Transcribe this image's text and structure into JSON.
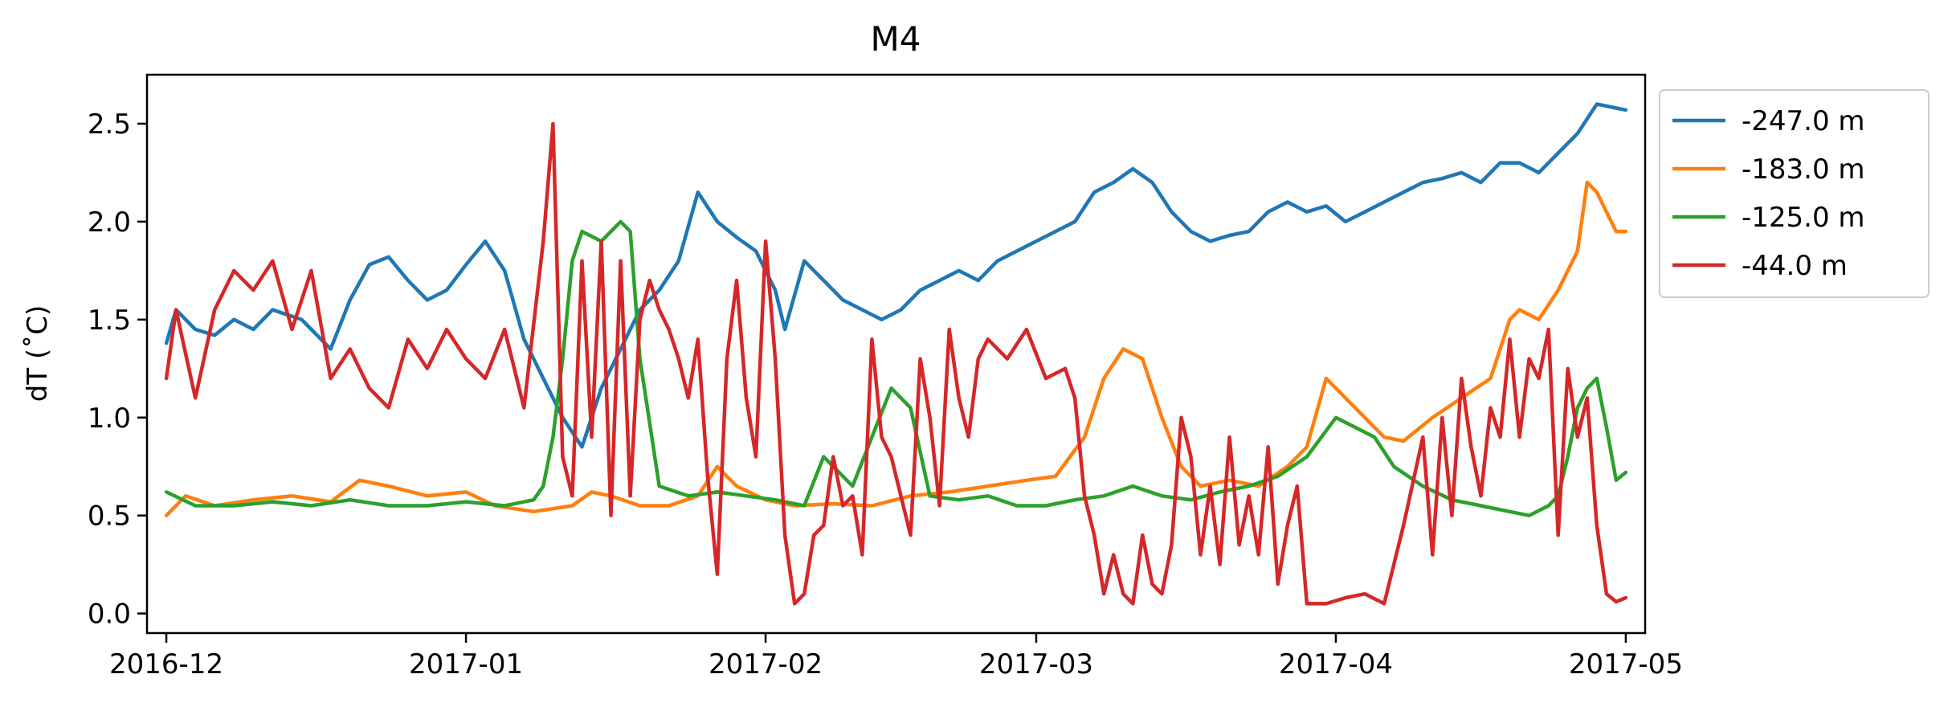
{
  "chart_data": {
    "type": "line",
    "title": "M4",
    "xlabel": "",
    "ylabel": "dT (˚C)",
    "xlim": [
      "2016-11-29",
      "2017-05-03"
    ],
    "ylim": [
      -0.1,
      2.75
    ],
    "x_ticks": [
      "2016-12-01",
      "2017-01-01",
      "2017-02-01",
      "2017-03-01",
      "2017-04-01",
      "2017-05-01"
    ],
    "x_tick_labels": [
      "2016-12",
      "2017-01",
      "2017-02",
      "2017-03",
      "2017-04",
      "2017-05"
    ],
    "y_ticks": [
      0.0,
      0.5,
      1.0,
      1.5,
      2.0,
      2.5
    ],
    "y_tick_labels": [
      "0.0",
      "0.5",
      "1.0",
      "1.5",
      "2.0",
      "2.5"
    ],
    "grid": false,
    "legend_position": "outside-upper-right",
    "series": [
      {
        "name": "-247.0 m",
        "color": "#1f77b4",
        "x": [
          "2016-12-01",
          "2016-12-02",
          "2016-12-04",
          "2016-12-06",
          "2016-12-08",
          "2016-12-10",
          "2016-12-12",
          "2016-12-15",
          "2016-12-18",
          "2016-12-20",
          "2016-12-22",
          "2016-12-24",
          "2016-12-26",
          "2016-12-28",
          "2016-12-30",
          "2017-01-01",
          "2017-01-03",
          "2017-01-05",
          "2017-01-07",
          "2017-01-09",
          "2017-01-11",
          "2017-01-13",
          "2017-01-15",
          "2017-01-17",
          "2017-01-19",
          "2017-01-21",
          "2017-01-23",
          "2017-01-25",
          "2017-01-27",
          "2017-01-29",
          "2017-01-31",
          "2017-02-02",
          "2017-02-03",
          "2017-02-05",
          "2017-02-07",
          "2017-02-09",
          "2017-02-11",
          "2017-02-13",
          "2017-02-15",
          "2017-02-17",
          "2017-02-19",
          "2017-02-21",
          "2017-02-23",
          "2017-02-25",
          "2017-02-27",
          "2017-03-01",
          "2017-03-03",
          "2017-03-05",
          "2017-03-07",
          "2017-03-09",
          "2017-03-11",
          "2017-03-13",
          "2017-03-15",
          "2017-03-17",
          "2017-03-19",
          "2017-03-21",
          "2017-03-23",
          "2017-03-25",
          "2017-03-27",
          "2017-03-29",
          "2017-03-31",
          "2017-04-02",
          "2017-04-04",
          "2017-04-06",
          "2017-04-08",
          "2017-04-10",
          "2017-04-12",
          "2017-04-14",
          "2017-04-16",
          "2017-04-18",
          "2017-04-20",
          "2017-04-22",
          "2017-04-24",
          "2017-04-26",
          "2017-04-28",
          "2017-04-30",
          "2017-05-01"
        ],
        "y": [
          1.38,
          1.55,
          1.45,
          1.42,
          1.5,
          1.45,
          1.55,
          1.5,
          1.35,
          1.6,
          1.78,
          1.82,
          1.7,
          1.6,
          1.65,
          1.78,
          1.9,
          1.75,
          1.4,
          1.2,
          1.0,
          0.85,
          1.15,
          1.35,
          1.55,
          1.65,
          1.8,
          2.15,
          2.0,
          1.92,
          1.85,
          1.65,
          1.45,
          1.8,
          1.7,
          1.6,
          1.55,
          1.5,
          1.55,
          1.65,
          1.7,
          1.75,
          1.7,
          1.8,
          1.85,
          1.9,
          1.95,
          2.0,
          2.15,
          2.2,
          2.27,
          2.2,
          2.05,
          1.95,
          1.9,
          1.93,
          1.95,
          2.05,
          2.1,
          2.05,
          2.08,
          2.0,
          2.05,
          2.1,
          2.15,
          2.2,
          2.22,
          2.25,
          2.2,
          2.3,
          2.3,
          2.25,
          2.35,
          2.45,
          2.6,
          2.58,
          2.57
        ]
      },
      {
        "name": "-183.0 m",
        "color": "#ff7f0e",
        "x": [
          "2016-12-01",
          "2016-12-03",
          "2016-12-06",
          "2016-12-10",
          "2016-12-14",
          "2016-12-18",
          "2016-12-21",
          "2016-12-24",
          "2016-12-28",
          "2017-01-01",
          "2017-01-04",
          "2017-01-08",
          "2017-01-12",
          "2017-01-14",
          "2017-01-16",
          "2017-01-19",
          "2017-01-22",
          "2017-01-25",
          "2017-01-27",
          "2017-01-29",
          "2017-02-01",
          "2017-02-04",
          "2017-02-08",
          "2017-02-12",
          "2017-02-16",
          "2017-02-20",
          "2017-02-24",
          "2017-02-28",
          "2017-03-03",
          "2017-03-06",
          "2017-03-08",
          "2017-03-10",
          "2017-03-12",
          "2017-03-14",
          "2017-03-16",
          "2017-03-18",
          "2017-03-21",
          "2017-03-24",
          "2017-03-27",
          "2017-03-29",
          "2017-03-31",
          "2017-04-02",
          "2017-04-04",
          "2017-04-06",
          "2017-04-08",
          "2017-04-11",
          "2017-04-14",
          "2017-04-17",
          "2017-04-19",
          "2017-04-20",
          "2017-04-22",
          "2017-04-24",
          "2017-04-26",
          "2017-04-27",
          "2017-04-28",
          "2017-04-29",
          "2017-04-30",
          "2017-05-01"
        ],
        "y": [
          0.5,
          0.6,
          0.55,
          0.58,
          0.6,
          0.57,
          0.68,
          0.65,
          0.6,
          0.62,
          0.55,
          0.52,
          0.55,
          0.62,
          0.6,
          0.55,
          0.55,
          0.6,
          0.75,
          0.65,
          0.58,
          0.55,
          0.56,
          0.55,
          0.6,
          0.62,
          0.65,
          0.68,
          0.7,
          0.9,
          1.2,
          1.35,
          1.3,
          1.0,
          0.75,
          0.65,
          0.68,
          0.65,
          0.75,
          0.85,
          1.2,
          1.1,
          1.0,
          0.9,
          0.88,
          1.0,
          1.1,
          1.2,
          1.5,
          1.55,
          1.5,
          1.65,
          1.85,
          2.2,
          2.15,
          2.05,
          1.95,
          1.95
        ]
      },
      {
        "name": "-125.0 m",
        "color": "#2ca02c",
        "x": [
          "2016-12-01",
          "2016-12-04",
          "2016-12-08",
          "2016-12-12",
          "2016-12-16",
          "2016-12-20",
          "2016-12-24",
          "2016-12-28",
          "2017-01-01",
          "2017-01-05",
          "2017-01-08",
          "2017-01-09",
          "2017-01-10",
          "2017-01-11",
          "2017-01-12",
          "2017-01-13",
          "2017-01-15",
          "2017-01-17",
          "2017-01-18",
          "2017-01-19",
          "2017-01-21",
          "2017-01-24",
          "2017-01-27",
          "2017-01-30",
          "2017-02-02",
          "2017-02-05",
          "2017-02-07",
          "2017-02-10",
          "2017-02-12",
          "2017-02-14",
          "2017-02-16",
          "2017-02-18",
          "2017-02-21",
          "2017-02-24",
          "2017-02-27",
          "2017-03-02",
          "2017-03-05",
          "2017-03-08",
          "2017-03-11",
          "2017-03-14",
          "2017-03-17",
          "2017-03-20",
          "2017-03-23",
          "2017-03-26",
          "2017-03-29",
          "2017-04-01",
          "2017-04-03",
          "2017-04-05",
          "2017-04-07",
          "2017-04-10",
          "2017-04-13",
          "2017-04-16",
          "2017-04-19",
          "2017-04-21",
          "2017-04-23",
          "2017-04-24",
          "2017-04-25",
          "2017-04-26",
          "2017-04-27",
          "2017-04-28",
          "2017-04-29",
          "2017-04-30",
          "2017-05-01"
        ],
        "y": [
          0.62,
          0.55,
          0.55,
          0.57,
          0.55,
          0.58,
          0.55,
          0.55,
          0.57,
          0.55,
          0.58,
          0.65,
          0.9,
          1.3,
          1.8,
          1.95,
          1.9,
          2.0,
          1.95,
          1.3,
          0.65,
          0.6,
          0.62,
          0.6,
          0.58,
          0.55,
          0.8,
          0.65,
          0.9,
          1.15,
          1.05,
          0.6,
          0.58,
          0.6,
          0.55,
          0.55,
          0.58,
          0.6,
          0.65,
          0.6,
          0.58,
          0.62,
          0.65,
          0.7,
          0.8,
          1.0,
          0.95,
          0.9,
          0.75,
          0.65,
          0.58,
          0.55,
          0.52,
          0.5,
          0.55,
          0.6,
          0.8,
          1.05,
          1.15,
          1.2,
          0.95,
          0.68,
          0.72
        ]
      },
      {
        "name": "-44.0 m",
        "color": "#d62728",
        "x": [
          "2016-12-01",
          "2016-12-02",
          "2016-12-04",
          "2016-12-06",
          "2016-12-08",
          "2016-12-10",
          "2016-12-12",
          "2016-12-14",
          "2016-12-16",
          "2016-12-18",
          "2016-12-20",
          "2016-12-22",
          "2016-12-24",
          "2016-12-26",
          "2016-12-28",
          "2016-12-30",
          "2017-01-01",
          "2017-01-03",
          "2017-01-05",
          "2017-01-07",
          "2017-01-09",
          "2017-01-10",
          "2017-01-11",
          "2017-01-12",
          "2017-01-13",
          "2017-01-14",
          "2017-01-15",
          "2017-01-16",
          "2017-01-17",
          "2017-01-18",
          "2017-01-19",
          "2017-01-20",
          "2017-01-21",
          "2017-01-22",
          "2017-01-23",
          "2017-01-24",
          "2017-01-25",
          "2017-01-26",
          "2017-01-27",
          "2017-01-28",
          "2017-01-29",
          "2017-01-30",
          "2017-01-31",
          "2017-02-01",
          "2017-02-02",
          "2017-02-03",
          "2017-02-04",
          "2017-02-05",
          "2017-02-06",
          "2017-02-07",
          "2017-02-08",
          "2017-02-09",
          "2017-02-10",
          "2017-02-11",
          "2017-02-12",
          "2017-02-13",
          "2017-02-14",
          "2017-02-15",
          "2017-02-16",
          "2017-02-17",
          "2017-02-18",
          "2017-02-19",
          "2017-02-20",
          "2017-02-21",
          "2017-02-22",
          "2017-02-23",
          "2017-02-24",
          "2017-02-26",
          "2017-02-28",
          "2017-03-02",
          "2017-03-04",
          "2017-03-05",
          "2017-03-06",
          "2017-03-07",
          "2017-03-08",
          "2017-03-09",
          "2017-03-10",
          "2017-03-11",
          "2017-03-12",
          "2017-03-13",
          "2017-03-14",
          "2017-03-15",
          "2017-03-16",
          "2017-03-17",
          "2017-03-18",
          "2017-03-19",
          "2017-03-20",
          "2017-03-21",
          "2017-03-22",
          "2017-03-23",
          "2017-03-24",
          "2017-03-25",
          "2017-03-26",
          "2017-03-27",
          "2017-03-28",
          "2017-03-29",
          "2017-03-31",
          "2017-04-02",
          "2017-04-04",
          "2017-04-06",
          "2017-04-08",
          "2017-04-10",
          "2017-04-11",
          "2017-04-12",
          "2017-04-13",
          "2017-04-14",
          "2017-04-15",
          "2017-04-16",
          "2017-04-17",
          "2017-04-18",
          "2017-04-19",
          "2017-04-20",
          "2017-04-21",
          "2017-04-22",
          "2017-04-23",
          "2017-04-24",
          "2017-04-25",
          "2017-04-26",
          "2017-04-27",
          "2017-04-28",
          "2017-04-29",
          "2017-04-30",
          "2017-05-01"
        ],
        "y": [
          1.2,
          1.55,
          1.1,
          1.55,
          1.75,
          1.65,
          1.8,
          1.45,
          1.75,
          1.2,
          1.35,
          1.15,
          1.05,
          1.4,
          1.25,
          1.45,
          1.3,
          1.2,
          1.45,
          1.05,
          1.9,
          2.5,
          0.8,
          0.6,
          1.8,
          0.9,
          1.9,
          0.5,
          1.8,
          0.6,
          1.5,
          1.7,
          1.55,
          1.45,
          1.3,
          1.1,
          1.4,
          0.7,
          0.2,
          1.3,
          1.7,
          1.1,
          0.8,
          1.9,
          1.3,
          0.4,
          0.05,
          0.1,
          0.4,
          0.45,
          0.8,
          0.55,
          0.6,
          0.3,
          1.4,
          0.9,
          0.8,
          0.6,
          0.4,
          1.3,
          1.0,
          0.55,
          1.45,
          1.1,
          0.9,
          1.3,
          1.4,
          1.3,
          1.45,
          1.2,
          1.25,
          1.1,
          0.6,
          0.4,
          0.1,
          0.3,
          0.1,
          0.05,
          0.4,
          0.15,
          0.1,
          0.35,
          1.0,
          0.8,
          0.3,
          0.65,
          0.25,
          0.9,
          0.35,
          0.6,
          0.3,
          0.85,
          0.15,
          0.45,
          0.65,
          0.05,
          0.05,
          0.08,
          0.1,
          0.05,
          0.45,
          0.9,
          0.3,
          1.0,
          0.5,
          1.2,
          0.85,
          0.6,
          1.05,
          0.9,
          1.4,
          0.9,
          1.3,
          1.2,
          1.45,
          0.4,
          1.25,
          0.9,
          1.1,
          0.45,
          0.1,
          0.06,
          0.08
        ]
      }
    ]
  }
}
